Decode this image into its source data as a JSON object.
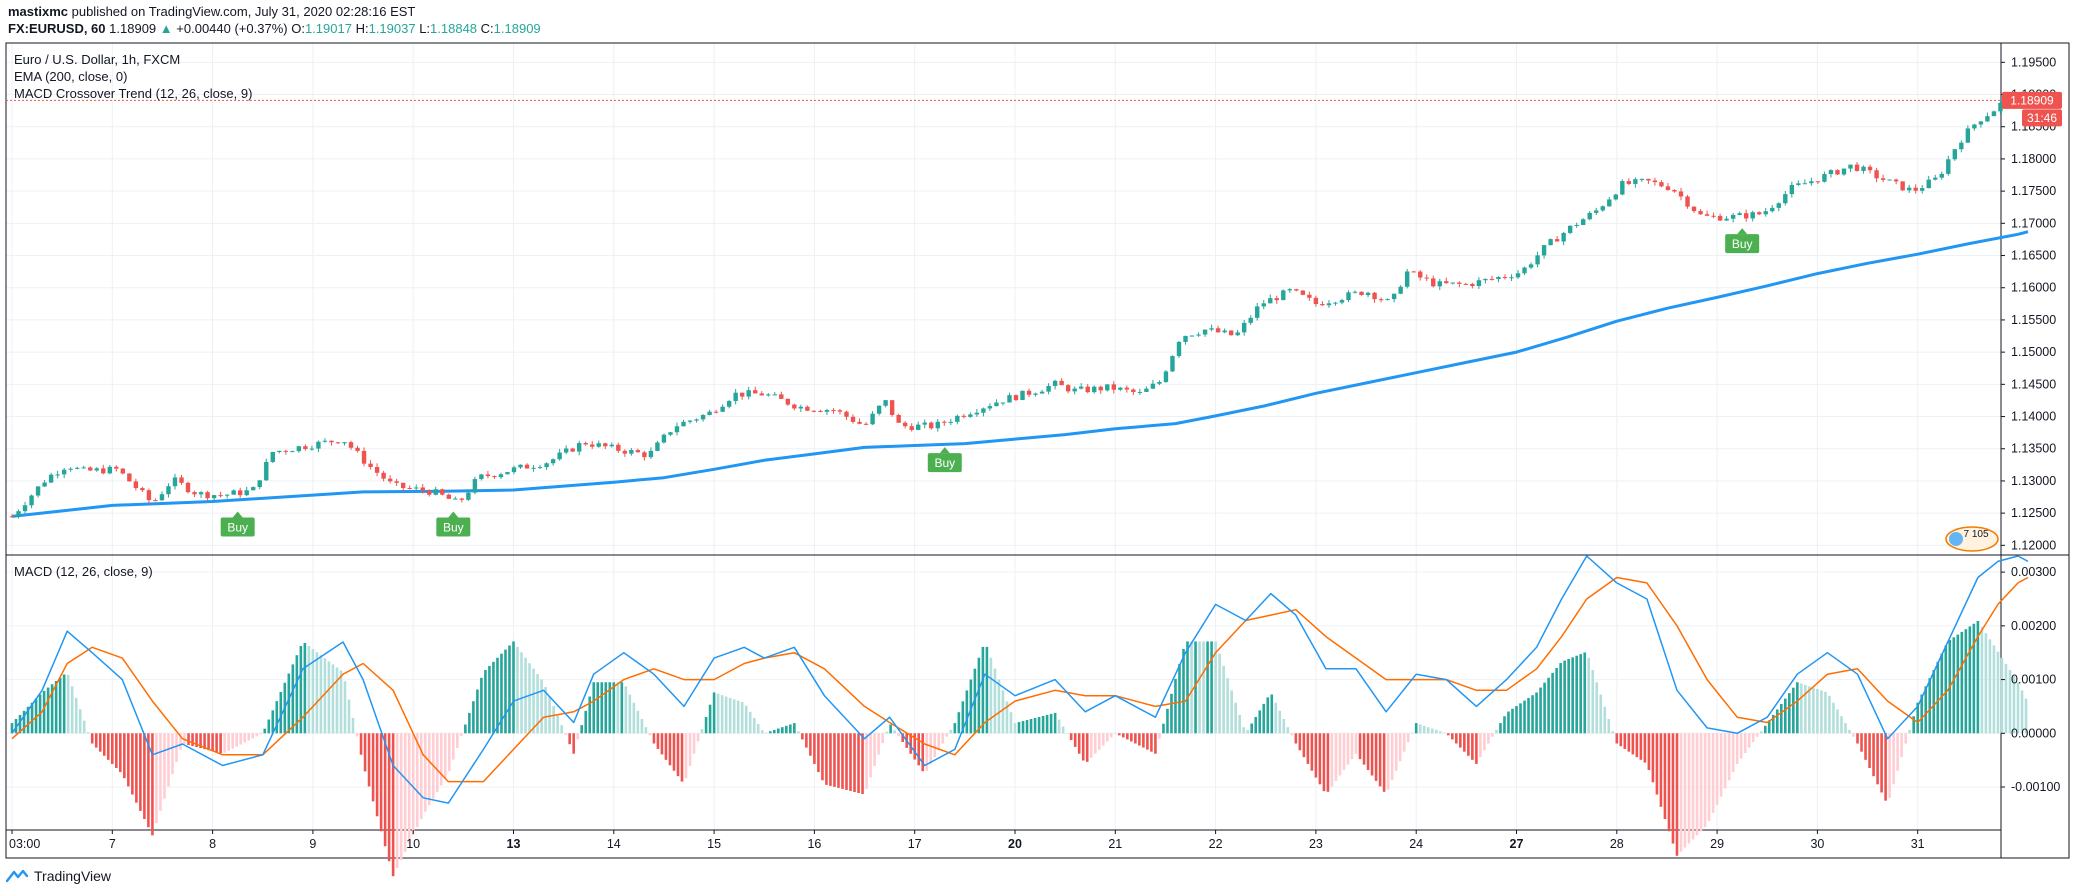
{
  "header": {
    "author": "mastixmc",
    "published": "published on TradingView.com, July 31, 2020 02:28:16 EST",
    "symbol": "FX:EURUSD, 60",
    "last": "1.18909",
    "change_arrow": "▲",
    "change": "+0.00440 (+0.37%)",
    "o_label": "O:",
    "o_value": "1.19017",
    "h_label": "H:",
    "h_value": "1.19037",
    "l_label": "L:",
    "l_value": "1.18848",
    "c_label": "C:",
    "c_value": "1.18909"
  },
  "main_legend": {
    "title": "Euro / U.S. Dollar, 1h, FXCM",
    "ema": "EMA (200, close, 0)",
    "strategy": "MACD Crossover Trend (12, 26, close, 9)"
  },
  "macd_legend": {
    "title": "MACD (12, 26, close, 9)"
  },
  "price_badge": {
    "value": "1.18909",
    "countdown": "31:46"
  },
  "watermark_badge": {
    "text": "7 105"
  },
  "footer": {
    "brand": "TradingView"
  },
  "colors": {
    "up": "#26a69a",
    "down": "#ef5350",
    "ema": "#2196f3",
    "macd_line": "#2196f3",
    "signal_line": "#ff6d00",
    "hist_up_strong": "#26a69a",
    "hist_up_weak": "#b2dfdb",
    "hist_down_strong": "#ef5350",
    "hist_down_weak": "#ffcdd2",
    "buy": "#4caf50",
    "badge": "#ef5350",
    "grid": "#edf0f5"
  },
  "icons": {
    "logo": "tradingview-logo-icon"
  },
  "chart_data": [
    {
      "type": "candlestick",
      "title": "Euro / U.S. Dollar, 1h, FXCM",
      "y_axis_side": "right",
      "ylim": [
        1.1185,
        1.198
      ],
      "y_ticks": [
        "1.19500",
        "1.19000",
        "1.18500",
        "1.18000",
        "1.17500",
        "1.17000",
        "1.16500",
        "1.16000",
        "1.15500",
        "1.15000",
        "1.14500",
        "1.14000",
        "1.13500",
        "1.13000",
        "1.12500",
        "1.12000"
      ],
      "y_tick_values": [
        1.195,
        1.19,
        1.185,
        1.18,
        1.175,
        1.17,
        1.165,
        1.16,
        1.155,
        1.15,
        1.145,
        1.14,
        1.135,
        1.13,
        1.125,
        1.12
      ],
      "x_ticks": [
        {
          "label": "03:00",
          "day": 0,
          "bold": false
        },
        {
          "label": "7",
          "day": 1,
          "bold": false
        },
        {
          "label": "8",
          "day": 2,
          "bold": false
        },
        {
          "label": "9",
          "day": 3,
          "bold": false
        },
        {
          "label": "10",
          "day": 4,
          "bold": false
        },
        {
          "label": "13",
          "day": 5,
          "bold": true
        },
        {
          "label": "14",
          "day": 6,
          "bold": false
        },
        {
          "label": "15",
          "day": 7,
          "bold": false
        },
        {
          "label": "16",
          "day": 8,
          "bold": false
        },
        {
          "label": "17",
          "day": 9,
          "bold": false
        },
        {
          "label": "20",
          "day": 10,
          "bold": true
        },
        {
          "label": "21",
          "day": 11,
          "bold": false
        },
        {
          "label": "22",
          "day": 12,
          "bold": false
        },
        {
          "label": "23",
          "day": 13,
          "bold": false
        },
        {
          "label": "24",
          "day": 14,
          "bold": false
        },
        {
          "label": "27",
          "day": 15,
          "bold": true
        },
        {
          "label": "28",
          "day": 16,
          "bold": false
        },
        {
          "label": "29",
          "day": 17,
          "bold": false
        },
        {
          "label": "30",
          "day": 18,
          "bold": false
        },
        {
          "label": "31",
          "day": 19,
          "bold": false
        }
      ],
      "close_path": [
        [
          0.0,
          1.1245
        ],
        [
          0.35,
          1.1305
        ],
        [
          0.55,
          1.1325
        ],
        [
          0.7,
          1.1315
        ],
        [
          1.05,
          1.1318
        ],
        [
          1.4,
          1.1265
        ],
        [
          1.6,
          1.1302
        ],
        [
          1.85,
          1.128
        ],
        [
          2.1,
          1.1278
        ],
        [
          2.4,
          1.1285
        ],
        [
          2.6,
          1.1345
        ],
        [
          2.95,
          1.1355
        ],
        [
          3.3,
          1.1365
        ],
        [
          3.55,
          1.1325
        ],
        [
          3.8,
          1.1292
        ],
        [
          4.2,
          1.1283
        ],
        [
          4.45,
          1.1265
        ],
        [
          4.65,
          1.1305
        ],
        [
          5.0,
          1.1318
        ],
        [
          5.35,
          1.133
        ],
        [
          5.7,
          1.136
        ],
        [
          6.0,
          1.135
        ],
        [
          6.35,
          1.134
        ],
        [
          6.6,
          1.1385
        ],
        [
          6.95,
          1.1405
        ],
        [
          7.2,
          1.1435
        ],
        [
          7.5,
          1.1435
        ],
        [
          7.85,
          1.1415
        ],
        [
          8.2,
          1.141
        ],
        [
          8.5,
          1.1385
        ],
        [
          8.7,
          1.1425
        ],
        [
          8.85,
          1.1385
        ],
        [
          9.2,
          1.1385
        ],
        [
          9.5,
          1.1405
        ],
        [
          9.85,
          1.1425
        ],
        [
          10.1,
          1.1435
        ],
        [
          10.4,
          1.145
        ],
        [
          10.6,
          1.144
        ],
        [
          10.95,
          1.1445
        ],
        [
          11.25,
          1.1435
        ],
        [
          11.45,
          1.1455
        ],
        [
          11.65,
          1.1525
        ],
        [
          11.9,
          1.1535
        ],
        [
          12.2,
          1.1525
        ],
        [
          12.45,
          1.1575
        ],
        [
          12.75,
          1.1595
        ],
        [
          13.0,
          1.1575
        ],
        [
          13.25,
          1.1585
        ],
        [
          13.5,
          1.1595
        ],
        [
          13.75,
          1.1575
        ],
        [
          13.9,
          1.1625
        ],
        [
          14.2,
          1.1605
        ],
        [
          14.5,
          1.1605
        ],
        [
          14.8,
          1.1615
        ],
        [
          15.05,
          1.1625
        ],
        [
          15.3,
          1.1665
        ],
        [
          15.55,
          1.1695
        ],
        [
          15.8,
          1.172
        ],
        [
          16.05,
          1.176
        ],
        [
          16.3,
          1.1765
        ],
        [
          16.55,
          1.1755
        ],
        [
          16.85,
          1.171
        ],
        [
          17.15,
          1.171
        ],
        [
          17.45,
          1.1715
        ],
        [
          17.75,
          1.1755
        ],
        [
          18.1,
          1.1775
        ],
        [
          18.35,
          1.179
        ],
        [
          18.7,
          1.1765
        ],
        [
          18.95,
          1.175
        ],
        [
          19.2,
          1.177
        ],
        [
          19.4,
          1.1825
        ],
        [
          19.6,
          1.186
        ],
        [
          19.75,
          1.1875
        ],
        [
          19.9,
          1.1895
        ],
        [
          20.1,
          1.1891
        ]
      ],
      "ema_200": {
        "name": "EMA (200, close, 0)",
        "points": [
          [
            0.0,
            1.1245
          ],
          [
            1.0,
            1.1262
          ],
          [
            2.0,
            1.1268
          ],
          [
            3.0,
            1.1278
          ],
          [
            3.5,
            1.1283
          ],
          [
            4.3,
            1.1284
          ],
          [
            5.0,
            1.1286
          ],
          [
            6.0,
            1.1298
          ],
          [
            6.5,
            1.1305
          ],
          [
            7.0,
            1.1318
          ],
          [
            7.5,
            1.1332
          ],
          [
            8.0,
            1.1342
          ],
          [
            8.5,
            1.1352
          ],
          [
            9.0,
            1.1355
          ],
          [
            9.5,
            1.1358
          ],
          [
            10.0,
            1.1365
          ],
          [
            10.5,
            1.1372
          ],
          [
            11.0,
            1.1381
          ],
          [
            11.6,
            1.1389
          ],
          [
            12.0,
            1.1401
          ],
          [
            12.5,
            1.1417
          ],
          [
            13.0,
            1.1436
          ],
          [
            13.5,
            1.1452
          ],
          [
            14.0,
            1.1468
          ],
          [
            14.5,
            1.1484
          ],
          [
            15.0,
            1.15
          ],
          [
            15.5,
            1.1523
          ],
          [
            16.0,
            1.1548
          ],
          [
            16.5,
            1.1568
          ],
          [
            17.0,
            1.1585
          ],
          [
            17.5,
            1.1603
          ],
          [
            18.0,
            1.1622
          ],
          [
            18.5,
            1.1638
          ],
          [
            19.0,
            1.1652
          ],
          [
            19.5,
            1.1668
          ],
          [
            20.0,
            1.1683
          ],
          [
            20.1,
            1.1687
          ]
        ]
      },
      "signals": [
        {
          "label": "Buy",
          "day": 2.25,
          "price": 1.1265
        },
        {
          "label": "Buy",
          "day": 4.4,
          "price": 1.1265
        },
        {
          "label": "Buy",
          "day": 9.3,
          "price": 1.1365
        },
        {
          "label": "Buy",
          "day": 17.25,
          "price": 1.1705
        }
      ],
      "last_price": 1.18909
    },
    {
      "type": "macd",
      "title": "MACD (12, 26, close, 9)",
      "ylim": [
        -0.0018,
        0.0033
      ],
      "y_ticks": [
        "0.00300",
        "0.00200",
        "0.00100",
        "0.00000",
        "-0.00100"
      ],
      "y_tick_values": [
        0.003,
        0.002,
        0.001,
        0.0,
        -0.001
      ],
      "macd_line": [
        [
          0.0,
          0.0
        ],
        [
          0.3,
          0.0008
        ],
        [
          0.55,
          0.0019
        ],
        [
          0.8,
          0.0015
        ],
        [
          1.1,
          0.001
        ],
        [
          1.4,
          -0.0004
        ],
        [
          1.7,
          -0.0002
        ],
        [
          2.1,
          -0.0006
        ],
        [
          2.5,
          -0.0004
        ],
        [
          2.9,
          0.0012
        ],
        [
          3.3,
          0.0017
        ],
        [
          3.5,
          0.001
        ],
        [
          3.8,
          -0.0006
        ],
        [
          4.1,
          -0.0012
        ],
        [
          4.35,
          -0.0013
        ],
        [
          4.7,
          -0.0003
        ],
        [
          5.0,
          0.0006
        ],
        [
          5.3,
          0.0008
        ],
        [
          5.6,
          0.0002
        ],
        [
          5.8,
          0.0011
        ],
        [
          6.1,
          0.0015
        ],
        [
          6.4,
          0.0011
        ],
        [
          6.7,
          0.0005
        ],
        [
          7.0,
          0.0014
        ],
        [
          7.3,
          0.0016
        ],
        [
          7.5,
          0.0014
        ],
        [
          7.8,
          0.0016
        ],
        [
          8.1,
          0.0007
        ],
        [
          8.5,
          -0.0001
        ],
        [
          8.75,
          0.0003
        ],
        [
          9.1,
          -0.0006
        ],
        [
          9.4,
          -0.0003
        ],
        [
          9.7,
          0.0011
        ],
        [
          10.0,
          0.0007
        ],
        [
          10.4,
          0.001
        ],
        [
          10.7,
          0.0004
        ],
        [
          11.0,
          0.0007
        ],
        [
          11.4,
          0.0003
        ],
        [
          11.7,
          0.0015
        ],
        [
          12.0,
          0.0024
        ],
        [
          12.3,
          0.0021
        ],
        [
          12.55,
          0.0026
        ],
        [
          12.8,
          0.0022
        ],
        [
          13.1,
          0.0012
        ],
        [
          13.4,
          0.0012
        ],
        [
          13.7,
          0.0004
        ],
        [
          14.0,
          0.0011
        ],
        [
          14.3,
          0.001
        ],
        [
          14.6,
          0.0005
        ],
        [
          14.9,
          0.001
        ],
        [
          15.2,
          0.0016
        ],
        [
          15.45,
          0.0025
        ],
        [
          15.7,
          0.0033
        ],
        [
          16.0,
          0.0028
        ],
        [
          16.3,
          0.0025
        ],
        [
          16.6,
          0.0008
        ],
        [
          16.9,
          0.0001
        ],
        [
          17.2,
          0.0
        ],
        [
          17.5,
          0.0003
        ],
        [
          17.8,
          0.0011
        ],
        [
          18.1,
          0.0015
        ],
        [
          18.4,
          0.0011
        ],
        [
          18.7,
          -0.0001
        ],
        [
          19.0,
          0.0005
        ],
        [
          19.3,
          0.0017
        ],
        [
          19.6,
          0.0029
        ],
        [
          19.8,
          0.0032
        ],
        [
          20.0,
          0.0033
        ],
        [
          20.1,
          0.0032
        ]
      ],
      "signal_line": [
        [
          0.0,
          -0.0001
        ],
        [
          0.3,
          0.0004
        ],
        [
          0.55,
          0.0013
        ],
        [
          0.8,
          0.0016
        ],
        [
          1.1,
          0.0014
        ],
        [
          1.4,
          0.0006
        ],
        [
          1.7,
          -0.0001
        ],
        [
          2.1,
          -0.0004
        ],
        [
          2.5,
          -0.0004
        ],
        [
          2.9,
          0.0003
        ],
        [
          3.3,
          0.0011
        ],
        [
          3.5,
          0.0013
        ],
        [
          3.8,
          0.0008
        ],
        [
          4.1,
          -0.0004
        ],
        [
          4.35,
          -0.0009
        ],
        [
          4.7,
          -0.0009
        ],
        [
          5.0,
          -0.0003
        ],
        [
          5.3,
          0.0003
        ],
        [
          5.6,
          0.0004
        ],
        [
          5.8,
          0.0006
        ],
        [
          6.1,
          0.001
        ],
        [
          6.4,
          0.0012
        ],
        [
          6.7,
          0.001
        ],
        [
          7.0,
          0.001
        ],
        [
          7.3,
          0.0013
        ],
        [
          7.5,
          0.0014
        ],
        [
          7.8,
          0.0015
        ],
        [
          8.1,
          0.0012
        ],
        [
          8.5,
          0.0005
        ],
        [
          8.75,
          0.0002
        ],
        [
          9.1,
          -0.0002
        ],
        [
          9.4,
          -0.0004
        ],
        [
          9.7,
          0.0002
        ],
        [
          10.0,
          0.0006
        ],
        [
          10.4,
          0.0008
        ],
        [
          10.7,
          0.0007
        ],
        [
          11.0,
          0.0007
        ],
        [
          11.4,
          0.0005
        ],
        [
          11.7,
          0.0006
        ],
        [
          12.0,
          0.0015
        ],
        [
          12.3,
          0.0021
        ],
        [
          12.55,
          0.0022
        ],
        [
          12.8,
          0.0023
        ],
        [
          13.1,
          0.0018
        ],
        [
          13.4,
          0.0014
        ],
        [
          13.7,
          0.001
        ],
        [
          14.0,
          0.001
        ],
        [
          14.3,
          0.001
        ],
        [
          14.6,
          0.0008
        ],
        [
          14.9,
          0.0008
        ],
        [
          15.2,
          0.0012
        ],
        [
          15.45,
          0.0018
        ],
        [
          15.7,
          0.0025
        ],
        [
          16.0,
          0.0029
        ],
        [
          16.3,
          0.0028
        ],
        [
          16.6,
          0.002
        ],
        [
          16.9,
          0.001
        ],
        [
          17.2,
          0.0003
        ],
        [
          17.5,
          0.0002
        ],
        [
          17.8,
          0.0006
        ],
        [
          18.1,
          0.0011
        ],
        [
          18.4,
          0.0012
        ],
        [
          18.7,
          0.0006
        ],
        [
          19.0,
          0.0002
        ],
        [
          19.3,
          0.0008
        ],
        [
          19.6,
          0.0018
        ],
        [
          19.8,
          0.0024
        ],
        [
          20.0,
          0.0028
        ],
        [
          20.1,
          0.0029
        ]
      ]
    }
  ]
}
